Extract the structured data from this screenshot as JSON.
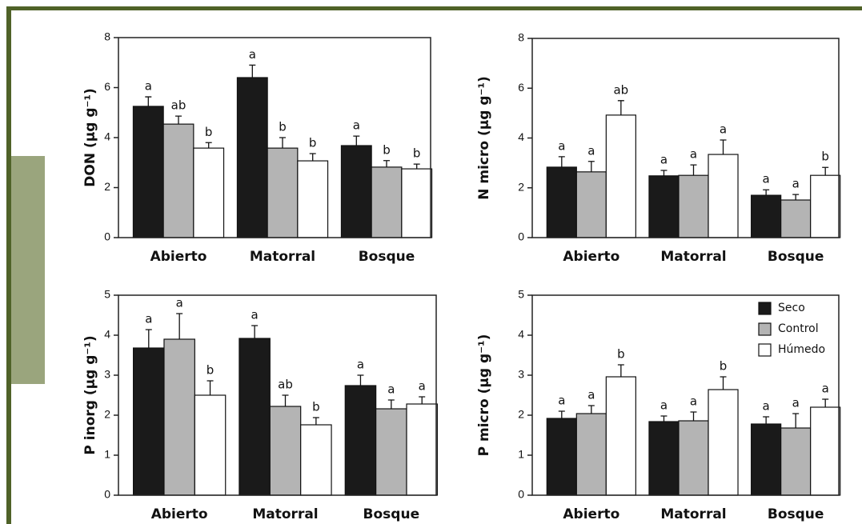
{
  "chart_data": [
    {
      "type": "bar",
      "ylabel": "DON (µg g⁻¹)",
      "categories": [
        "Abierto",
        "Matorral",
        "Bosque"
      ],
      "ylim": [
        0,
        8
      ],
      "yticks": [
        0,
        2,
        4,
        6,
        8
      ],
      "series": [
        {
          "color": "#1a1a1a",
          "values": [
            5.25,
            6.4,
            3.68
          ],
          "errors": [
            0.38,
            0.5,
            0.38
          ],
          "letters": [
            "a",
            "a",
            "a"
          ]
        },
        {
          "color": "#b4b4b4",
          "values": [
            4.54,
            3.58,
            2.82
          ],
          "errors": [
            0.32,
            0.42,
            0.26
          ],
          "letters": [
            "ab",
            "b",
            "b"
          ]
        },
        {
          "color": "#ffffff",
          "values": [
            3.58,
            3.07,
            2.75
          ],
          "errors": [
            0.22,
            0.29,
            0.19
          ],
          "letters": [
            "b",
            "b",
            "b"
          ]
        }
      ]
    },
    {
      "type": "bar",
      "ylabel": "N  micro (µg g⁻¹)",
      "categories": [
        "Abierto",
        "Matorral",
        "Bosque"
      ],
      "ylim": [
        0,
        8
      ],
      "yticks": [
        0,
        2,
        4,
        6,
        8
      ],
      "series": [
        {
          "color": "#1a1a1a",
          "values": [
            2.83,
            2.48,
            1.7
          ],
          "errors": [
            0.42,
            0.22,
            0.22
          ],
          "letters": [
            "a",
            "a",
            "a"
          ]
        },
        {
          "color": "#b4b4b4",
          "values": [
            2.64,
            2.5,
            1.51
          ],
          "errors": [
            0.42,
            0.42,
            0.22
          ],
          "letters": [
            "a",
            "a",
            "a"
          ]
        },
        {
          "color": "#ffffff",
          "values": [
            4.92,
            3.34,
            2.5
          ],
          "errors": [
            0.58,
            0.58,
            0.32
          ],
          "letters": [
            "ab",
            "a",
            "b"
          ]
        }
      ]
    },
    {
      "type": "bar",
      "ylabel": "P inorg (µg g⁻¹)",
      "categories": [
        "Abierto",
        "Matorral",
        "Bosque"
      ],
      "ylim": [
        0,
        5
      ],
      "yticks": [
        0,
        1,
        2,
        3,
        4,
        5
      ],
      "series": [
        {
          "color": "#1a1a1a",
          "values": [
            3.68,
            3.92,
            2.74
          ],
          "errors": [
            0.46,
            0.32,
            0.26
          ],
          "letters": [
            "a",
            "a",
            "a"
          ]
        },
        {
          "color": "#b4b4b4",
          "values": [
            3.9,
            2.22,
            2.16
          ],
          "errors": [
            0.64,
            0.28,
            0.22
          ],
          "letters": [
            "a",
            "ab",
            "a"
          ]
        },
        {
          "color": "#ffffff",
          "values": [
            2.5,
            1.76,
            2.28
          ],
          "errors": [
            0.36,
            0.18,
            0.18
          ],
          "letters": [
            "b",
            "b",
            "a"
          ]
        }
      ]
    },
    {
      "type": "bar",
      "ylabel": "P micro (µg g⁻¹)",
      "categories": [
        "Abierto",
        "Matorral",
        "Bosque"
      ],
      "ylim": [
        0,
        5
      ],
      "yticks": [
        0,
        1,
        2,
        3,
        4,
        5
      ],
      "legend": "upper right",
      "series": [
        {
          "name": "Seco",
          "color": "#1a1a1a",
          "values": [
            1.92,
            1.84,
            1.78
          ],
          "errors": [
            0.18,
            0.14,
            0.18
          ],
          "letters": [
            "a",
            "a",
            "a"
          ]
        },
        {
          "name": "Control",
          "color": "#b4b4b4",
          "values": [
            2.04,
            1.86,
            1.68
          ],
          "errors": [
            0.2,
            0.22,
            0.36
          ],
          "letters": [
            "a",
            "a",
            "a"
          ]
        },
        {
          "name": "Húmedo",
          "color": "#ffffff",
          "values": [
            2.96,
            2.64,
            2.2
          ],
          "errors": [
            0.3,
            0.32,
            0.2
          ],
          "letters": [
            "b",
            "b",
            "a"
          ]
        }
      ]
    }
  ]
}
